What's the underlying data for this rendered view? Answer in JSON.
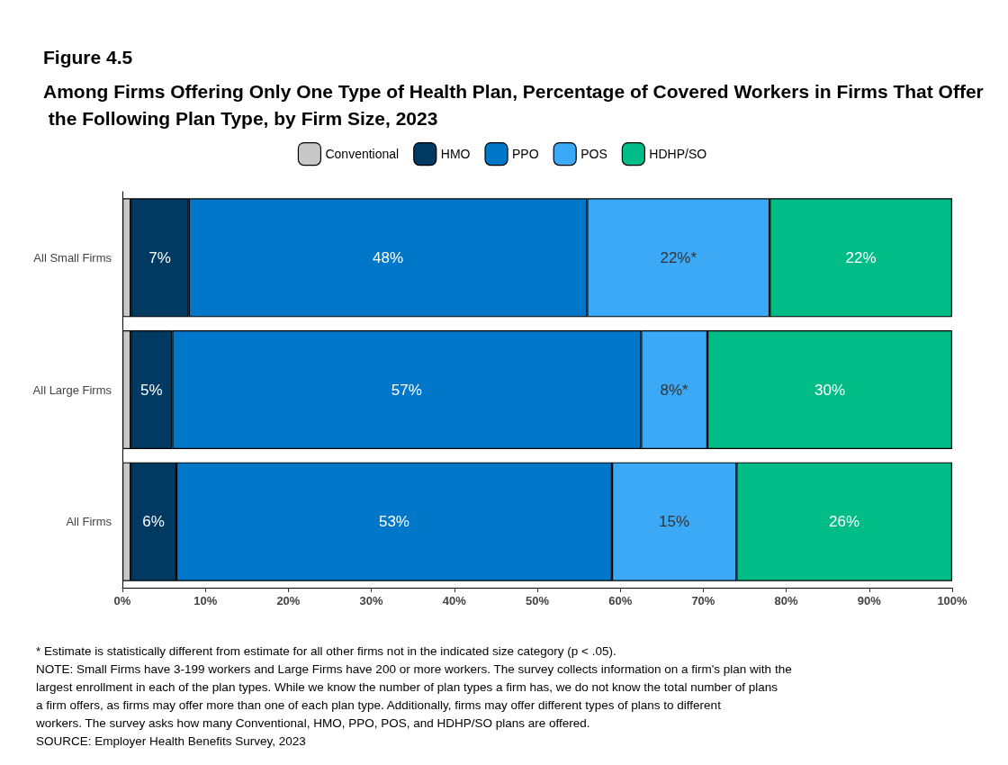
{
  "chart_data": {
    "type": "bar",
    "orientation": "horizontal",
    "stacked": true,
    "title": "Figure 4.5",
    "subtitle": "Among Firms Offering Only One Type of Health Plan, Percentage of Covered Workers in Firms That Offer the Following Plan Type, by Firm Size, 2023",
    "categories": [
      "All Small Firms",
      "All Large Firms",
      "All Firms"
    ],
    "series": [
      {
        "name": "Conventional",
        "color": "#c8c8c8",
        "values": [
          1,
          1,
          1
        ],
        "value_labels": [
          null,
          null,
          null
        ]
      },
      {
        "name": "HMO",
        "color": "#003a63",
        "values": [
          7,
          5,
          5.5
        ],
        "value_labels": [
          "7%",
          "5%",
          "6%"
        ]
      },
      {
        "name": "PPO",
        "color": "#0077c8",
        "values": [
          48,
          56.5,
          52.5
        ],
        "value_labels": [
          "48%",
          "57%",
          "53%"
        ]
      },
      {
        "name": "POS",
        "color": "#3ba9f5",
        "values": [
          22,
          8,
          15
        ],
        "value_labels": [
          "22%*",
          "8%*",
          "15%"
        ]
      },
      {
        "name": "HDHP/SO",
        "color": "#00bc87",
        "values": [
          22,
          29.5,
          26
        ],
        "value_labels": [
          "22%",
          "30%",
          "26%"
        ]
      }
    ],
    "xlim": [
      0,
      100
    ],
    "xticks": [
      {
        "value": 0,
        "label": "0%"
      },
      {
        "value": 10,
        "label": "10%"
      },
      {
        "value": 20,
        "label": "20%"
      },
      {
        "value": 30,
        "label": "30%"
      },
      {
        "value": 40,
        "label": "40%"
      },
      {
        "value": 50,
        "label": "50%"
      },
      {
        "value": 60,
        "label": "60%"
      },
      {
        "value": 70,
        "label": "70%"
      },
      {
        "value": 80,
        "label": "80%"
      },
      {
        "value": 90,
        "label": "90%"
      },
      {
        "value": 100,
        "label": "100%"
      }
    ],
    "grid": false,
    "legend": "top",
    "annotations": [
      "* Estimate is statistically different from estimate for all other firms not in the indicated size category (p < .05).",
      "NOTE: Small Firms have 3-199 workers and Large Firms have 200 or more workers. The survey collects information on a firm's plan with the largest enrollment in each of the plan types. While we know the number of plan types a firm has, we do not know the total number of plans a firm offers, as firms may offer more than one of each plan type. Additionally, firms may offer different types of plans to different workers. The survey asks how many Conventional, HMO, PPO, POS, and HDHP/SO plans are offered.",
      "SOURCE: Employer Health Benefits Survey, 2023"
    ]
  }
}
